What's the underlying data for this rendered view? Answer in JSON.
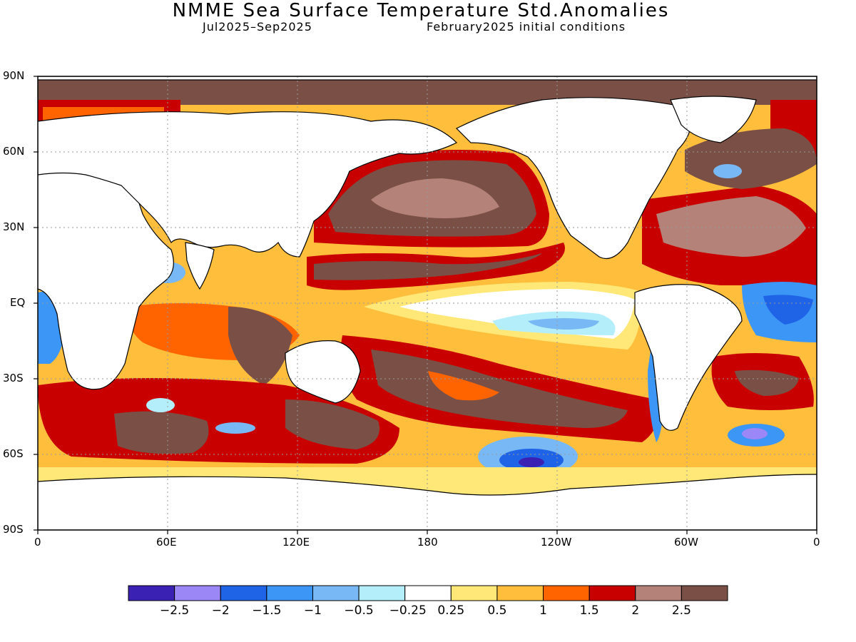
{
  "title": "NMME Sea Surface Temperature Std.Anomalies",
  "subtitle_left": "Jul2025–Sep2025",
  "subtitle_right": "February2025 initial conditions",
  "lat_labels": [
    "90N",
    "60N",
    "30N",
    "EQ",
    "30S",
    "60S",
    "90S"
  ],
  "lon_labels": [
    "0",
    "60E",
    "120E",
    "180",
    "120W",
    "60W",
    "0"
  ],
  "legend": {
    "labels": [
      "−2.5",
      "−2",
      "−1.5",
      "−1",
      "−0.5",
      "−0.25",
      "0.25",
      "0.5",
      "1",
      "1.5",
      "2",
      "2.5"
    ],
    "colors": [
      "#3b20b4",
      "#9b87f5",
      "#1f64e6",
      "#3c96f5",
      "#78b9f5",
      "#b4eefa",
      "#ffffff",
      "#ffe878",
      "#ffbe3c",
      "#ff6400",
      "#c80000",
      "#b48278",
      "#7a5046"
    ]
  }
}
